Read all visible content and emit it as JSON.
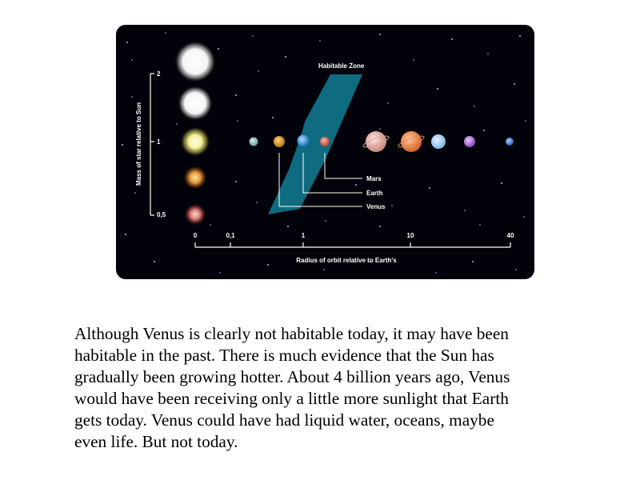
{
  "diagram": {
    "habitable_zone_label": "Habitable Zone",
    "y_axis_label": "Mass of star relative to Sun",
    "y_ticks": [
      "2",
      "1",
      "0,5"
    ],
    "x_axis_label": "Radius of orbit relative to Earth's",
    "x_ticks": [
      "0",
      "0,1",
      "1",
      "10",
      "40"
    ],
    "planet_labels": {
      "mars": "Mars",
      "earth": "Earth",
      "venus": "Venus"
    },
    "colors": {
      "background": "#02030a",
      "habitable_zone": "#0e6b80",
      "axis": "#ffffff"
    }
  },
  "caption": {
    "lines": [
      "Although Venus is clearly not habitable today, it may have been",
      "habitable in the past.  There is much evidence that the Sun has",
      "gradually been growing hotter.  About 4 billion years ago, Venus",
      "would have been receiving only a little more sunlight that Earth",
      "gets today.  Venus could have had liquid water, oceans, maybe",
      "even life.  But not today."
    ]
  }
}
